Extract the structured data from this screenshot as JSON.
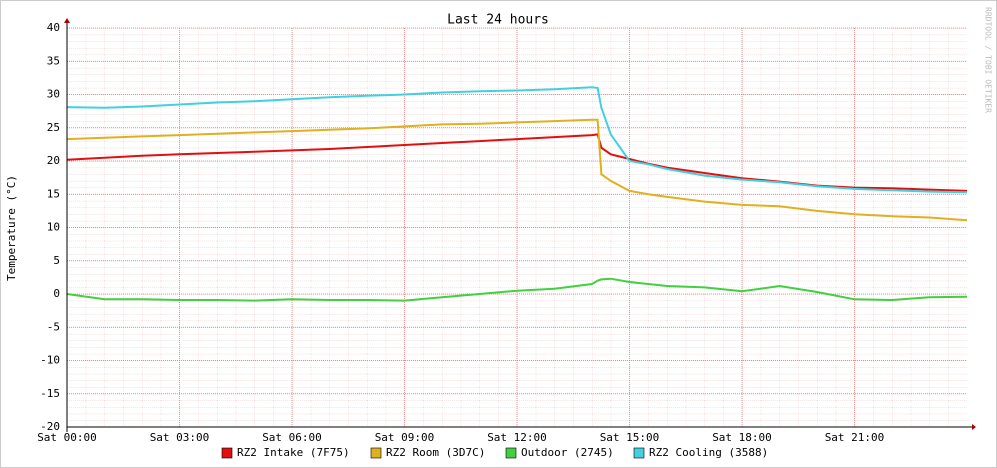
{
  "chart_data": {
    "type": "line",
    "title": "Last 24 hours",
    "y_label": "Temperature (°C)",
    "watermark": "RRDTOOL / TOBI OETIKER",
    "x": [
      0,
      1,
      2,
      3,
      4,
      5,
      6,
      7,
      8,
      9,
      10,
      11,
      12,
      13,
      14,
      14.15,
      14.25,
      14.5,
      15,
      15.5,
      16,
      17,
      18,
      19,
      20,
      21,
      22,
      23,
      24
    ],
    "xlim": [
      0,
      24
    ],
    "xticks": [
      {
        "value": 0,
        "label": "Sat 00:00"
      },
      {
        "value": 3,
        "label": "Sat 03:00"
      },
      {
        "value": 6,
        "label": "Sat 06:00"
      },
      {
        "value": 9,
        "label": "Sat 09:00"
      },
      {
        "value": 12,
        "label": "Sat 12:00"
      },
      {
        "value": 15,
        "label": "Sat 15:00"
      },
      {
        "value": 18,
        "label": "Sat 18:00"
      },
      {
        "value": 21,
        "label": "Sat 21:00"
      }
    ],
    "ylim": [
      -20,
      40
    ],
    "yticks": [
      -20,
      -15,
      -10,
      -5,
      0,
      5,
      10,
      15,
      20,
      25,
      30,
      35,
      40
    ],
    "grid": true,
    "series": [
      {
        "name": "RZ2 Intake (7F75)",
        "color": "#e01010",
        "values": [
          20.2,
          20.5,
          20.8,
          21.0,
          21.2,
          21.4,
          21.6,
          21.8,
          22.1,
          22.4,
          22.7,
          23.0,
          23.3,
          23.6,
          23.9,
          24.0,
          22.0,
          21.0,
          20.3,
          19.6,
          19.0,
          18.2,
          17.4,
          16.9,
          16.3,
          16.0,
          15.9,
          15.7,
          15.5
        ]
      },
      {
        "name": "RZ2 Room (3D7C)",
        "color": "#e0b020",
        "values": [
          23.3,
          23.5,
          23.7,
          23.9,
          24.1,
          24.3,
          24.5,
          24.7,
          24.9,
          25.2,
          25.5,
          25.6,
          25.8,
          26.0,
          26.2,
          26.2,
          18.0,
          17.0,
          15.5,
          15.0,
          14.6,
          13.9,
          13.4,
          13.2,
          12.5,
          12.0,
          11.7,
          11.5,
          11.1
        ]
      },
      {
        "name": "Outdoor (2745)",
        "color": "#40d040",
        "values": [
          0.0,
          -0.8,
          -0.8,
          -0.9,
          -0.9,
          -1.0,
          -0.8,
          -0.9,
          -0.9,
          -1.0,
          -0.5,
          0.0,
          0.5,
          0.8,
          1.5,
          2.0,
          2.2,
          2.3,
          1.8,
          1.5,
          1.2,
          1.0,
          0.4,
          1.2,
          0.3,
          -0.8,
          -0.9,
          -0.5,
          -0.4
        ]
      },
      {
        "name": "RZ2 Cooling (3588)",
        "color": "#40d0e0",
        "values": [
          28.1,
          28.0,
          28.2,
          28.5,
          28.8,
          29.0,
          29.3,
          29.6,
          29.8,
          30.0,
          30.3,
          30.5,
          30.6,
          30.8,
          31.1,
          31.0,
          28.0,
          24.0,
          20.0,
          19.5,
          18.8,
          17.8,
          17.2,
          16.8,
          16.2,
          15.8,
          15.6,
          15.4,
          15.3
        ]
      }
    ]
  }
}
